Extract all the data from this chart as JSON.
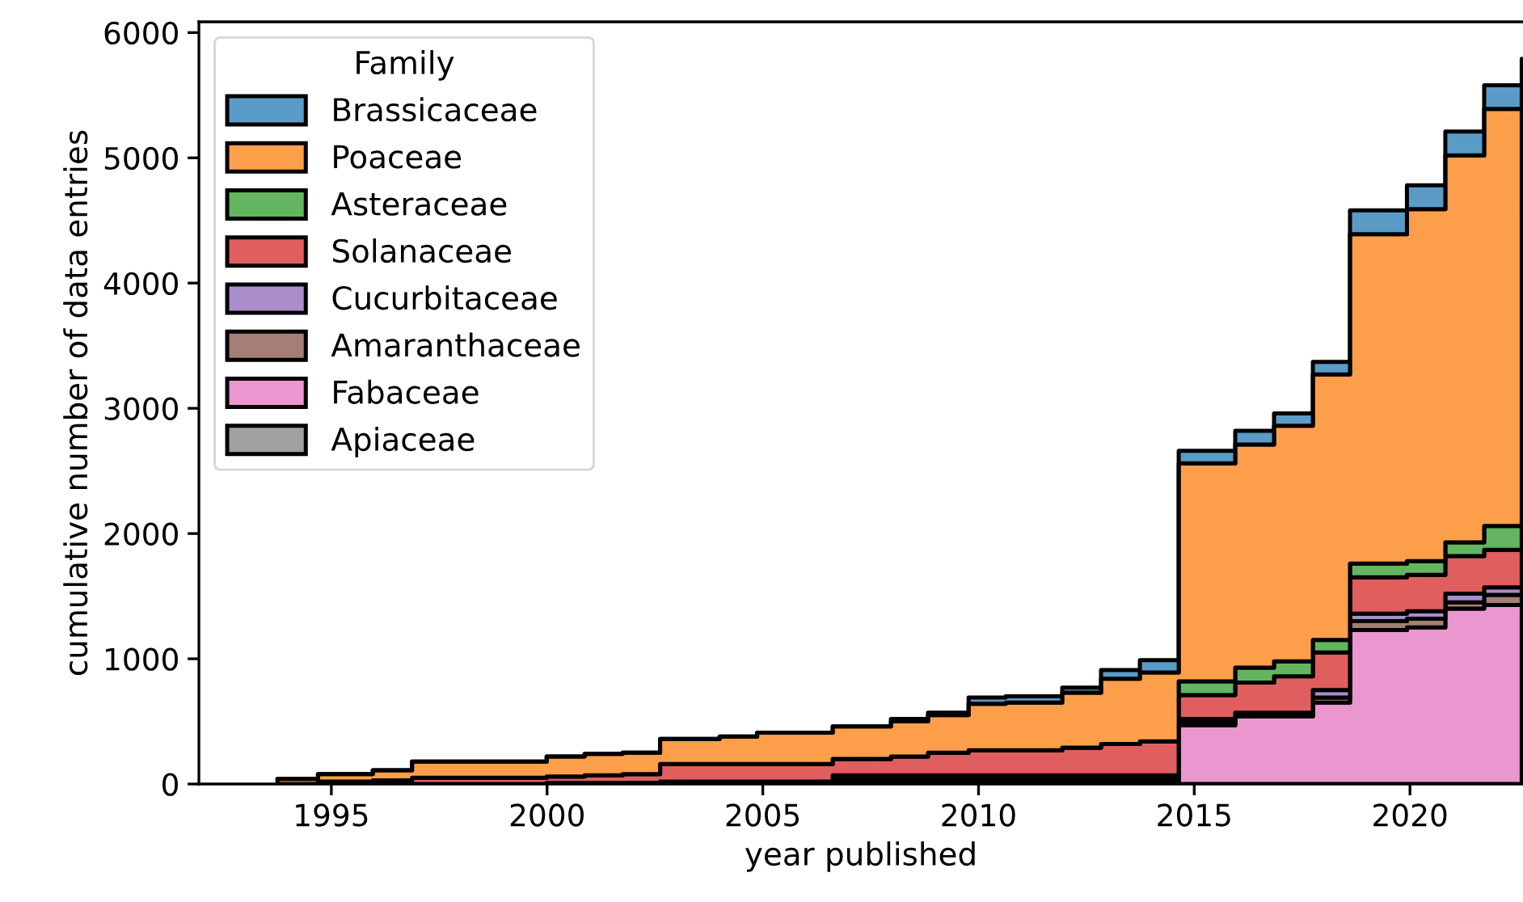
{
  "chart_data": {
    "type": "area",
    "stacked": true,
    "xlabel": "year published",
    "ylabel": "cumulative number of data entries",
    "legend_title": "Family",
    "legend": "top left",
    "grid": false,
    "xlim": [
      1991.93,
      2022.62
    ],
    "xticks": [
      1995,
      2000,
      2005,
      2010,
      2015,
      2020
    ],
    "ylim": [
      0,
      6086
    ],
    "yticks": [
      0,
      1000,
      2000,
      3000,
      4000,
      5000,
      6000
    ],
    "x": [
      1993.75,
      1994.69,
      1995.96,
      1996.87,
      1999.99,
      2000.87,
      2001.75,
      2002.62,
      2004.0,
      2004.87,
      2006.62,
      2007.97,
      2008.83,
      2009.77,
      2010.63,
      2011.94,
      2012.84,
      2013.74,
      2014.64,
      2015.95,
      2016.85,
      2017.75,
      2018.61,
      2019.93,
      2020.82,
      2021.72,
      2022.59
    ],
    "series": [
      {
        "name": "Apiaceae",
        "color": "#a0a0a0",
        "values": [
          null,
          null,
          null,
          null,
          null,
          null,
          null,
          null,
          null,
          null,
          null,
          null,
          null,
          null,
          null,
          null,
          null,
          null,
          null,
          null,
          null,
          null,
          null,
          null,
          null,
          null,
          null
        ]
      },
      {
        "name": "Fabaceae",
        "color": "#ea96cf",
        "values": [
          0,
          0,
          0,
          0,
          0,
          0,
          0,
          0,
          0,
          0,
          20,
          20,
          20,
          20,
          20,
          20,
          20,
          20,
          470,
          540,
          540,
          650,
          1230,
          1250,
          1400,
          1430,
          1470
        ]
      },
      {
        "name": "Amaranthaceae",
        "color": "#a47f76",
        "values": [
          0,
          0,
          0,
          0,
          0,
          0,
          0,
          0,
          0,
          0,
          20,
          20,
          20,
          20,
          20,
          20,
          20,
          20,
          20,
          10,
          10,
          40,
          70,
          70,
          50,
          80,
          80
        ]
      },
      {
        "name": "Cucurbitaceae",
        "color": "#aa8dcb",
        "values": [
          0,
          0,
          0,
          0,
          10,
          10,
          10,
          20,
          20,
          20,
          30,
          30,
          30,
          30,
          30,
          30,
          30,
          30,
          30,
          20,
          20,
          60,
          60,
          60,
          70,
          60,
          70
        ]
      },
      {
        "name": "Solanaceae",
        "color": "#e05e5e",
        "values": [
          0,
          20,
          30,
          50,
          50,
          60,
          70,
          140,
          140,
          140,
          130,
          150,
          180,
          200,
          200,
          220,
          250,
          270,
          190,
          240,
          290,
          300,
          290,
          290,
          300,
          300,
          320
        ]
      },
      {
        "name": "Asteraceae",
        "color": "#63b560",
        "values": [
          0,
          0,
          0,
          0,
          0,
          0,
          0,
          0,
          0,
          0,
          0,
          0,
          0,
          0,
          0,
          0,
          0,
          0,
          110,
          120,
          120,
          100,
          110,
          110,
          110,
          190,
          240
        ]
      },
      {
        "name": "Poaceae",
        "color": "#fd9f4a",
        "values": [
          40,
          60,
          80,
          130,
          160,
          170,
          170,
          200,
          220,
          250,
          260,
          280,
          300,
          370,
          380,
          440,
          520,
          550,
          1740,
          1780,
          1880,
          2120,
          2630,
          2810,
          3090,
          3330,
          3400
        ]
      },
      {
        "name": "Brassicaceae",
        "color": "#5a9bc7",
        "values": [
          0,
          0,
          0,
          0,
          0,
          0,
          0,
          0,
          0,
          0,
          0,
          20,
          20,
          50,
          50,
          40,
          70,
          100,
          100,
          110,
          100,
          100,
          190,
          190,
          190,
          190,
          210
        ]
      }
    ]
  }
}
